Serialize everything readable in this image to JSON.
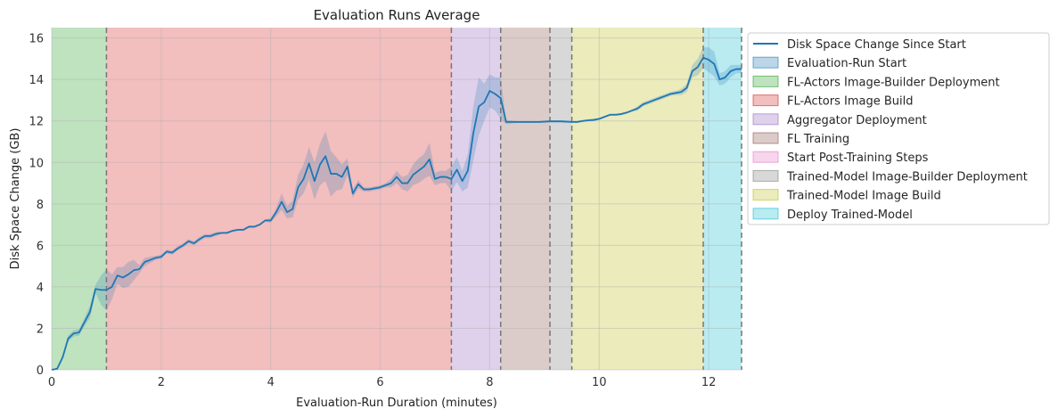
{
  "chart_data": {
    "type": "line",
    "title": "Evaluation Runs Average",
    "xlabel": "Evaluation-Run Duration (minutes)",
    "ylabel": "Disk Space Change (GB)",
    "xlim": [
      0,
      12.6
    ],
    "ylim": [
      0,
      16.5
    ],
    "xticks": [
      0,
      2,
      4,
      6,
      8,
      10,
      12
    ],
    "yticks": [
      0,
      2,
      4,
      6,
      8,
      10,
      12,
      14,
      16
    ],
    "grid": true,
    "legend_position": "outside-right",
    "line_color": "#1f77b4",
    "series": [
      {
        "name": "Disk Space Change Since Start",
        "x": [
          0,
          0.1,
          0.2,
          0.3,
          0.4,
          0.5,
          0.6,
          0.7,
          0.8,
          0.9,
          1.0,
          1.1,
          1.2,
          1.3,
          1.4,
          1.5,
          1.6,
          1.7,
          1.8,
          1.9,
          2.0,
          2.1,
          2.2,
          2.3,
          2.4,
          2.5,
          2.6,
          2.7,
          2.8,
          2.9,
          3.0,
          3.1,
          3.2,
          3.3,
          3.4,
          3.5,
          3.6,
          3.7,
          3.8,
          3.9,
          4.0,
          4.1,
          4.2,
          4.3,
          4.4,
          4.5,
          4.6,
          4.7,
          4.8,
          4.9,
          5.0,
          5.1,
          5.2,
          5.3,
          5.4,
          5.5,
          5.6,
          5.7,
          5.8,
          5.9,
          6.0,
          6.1,
          6.2,
          6.3,
          6.4,
          6.5,
          6.6,
          6.7,
          6.8,
          6.9,
          7.0,
          7.1,
          7.2,
          7.3,
          7.4,
          7.5,
          7.6,
          7.7,
          7.8,
          7.9,
          8.0,
          8.1,
          8.2,
          8.3,
          8.5,
          8.7,
          8.9,
          9.1,
          9.3,
          9.5,
          9.6,
          9.7,
          9.8,
          9.9,
          10.0,
          10.1,
          10.2,
          10.3,
          10.4,
          10.5,
          10.6,
          10.7,
          10.8,
          10.9,
          11.0,
          11.1,
          11.2,
          11.3,
          11.4,
          11.5,
          11.6,
          11.7,
          11.8,
          11.9,
          12.0,
          12.1,
          12.2,
          12.3,
          12.4,
          12.5,
          12.6
        ],
        "y": [
          0,
          0.05,
          0.6,
          1.5,
          1.75,
          1.8,
          2.3,
          2.8,
          3.9,
          3.85,
          3.85,
          4.0,
          4.55,
          4.45,
          4.6,
          4.8,
          4.85,
          5.2,
          5.3,
          5.4,
          5.45,
          5.7,
          5.65,
          5.85,
          6.0,
          6.2,
          6.1,
          6.3,
          6.45,
          6.45,
          6.55,
          6.6,
          6.6,
          6.7,
          6.75,
          6.75,
          6.9,
          6.9,
          7.0,
          7.2,
          7.2,
          7.6,
          8.1,
          7.6,
          7.75,
          8.8,
          9.2,
          9.95,
          9.1,
          9.9,
          10.3,
          9.45,
          9.45,
          9.3,
          9.8,
          8.5,
          8.95,
          8.7,
          8.7,
          8.75,
          8.8,
          8.9,
          9.0,
          9.3,
          9.0,
          9.0,
          9.4,
          9.6,
          9.8,
          10.15,
          9.2,
          9.3,
          9.3,
          9.2,
          9.65,
          9.1,
          9.6,
          11.4,
          12.7,
          12.9,
          13.45,
          13.3,
          13.1,
          11.95,
          11.95,
          11.95,
          11.95,
          11.98,
          11.98,
          11.95,
          11.95,
          12.0,
          12.03,
          12.05,
          12.1,
          12.2,
          12.3,
          12.3,
          12.33,
          12.4,
          12.5,
          12.6,
          12.8,
          12.9,
          13.0,
          13.1,
          13.2,
          13.3,
          13.35,
          13.4,
          13.6,
          14.4,
          14.6,
          15.05,
          14.95,
          14.75,
          14.0,
          14.1,
          14.4,
          14.5,
          14.5
        ],
        "ci_halfwidth": [
          0,
          0.05,
          0.1,
          0.15,
          0.15,
          0.15,
          0.2,
          0.3,
          0.2,
          0.7,
          1.0,
          0.6,
          0.4,
          0.5,
          0.6,
          0.5,
          0.2,
          0.2,
          0.15,
          0.1,
          0.1,
          0.1,
          0.1,
          0.1,
          0.1,
          0.1,
          0.1,
          0.1,
          0.1,
          0.1,
          0.1,
          0.05,
          0.05,
          0.05,
          0.05,
          0.05,
          0.05,
          0.05,
          0.05,
          0.05,
          0.1,
          0.2,
          0.4,
          0.3,
          0.4,
          0.6,
          0.7,
          0.8,
          0.9,
          1.0,
          1.2,
          1.1,
          0.8,
          0.6,
          0.4,
          0.2,
          0.2,
          0.1,
          0.1,
          0.1,
          0.1,
          0.1,
          0.2,
          0.3,
          0.3,
          0.4,
          0.5,
          0.6,
          0.6,
          0.8,
          0.3,
          0.3,
          0.3,
          0.6,
          0.6,
          0.5,
          0.8,
          1.3,
          1.4,
          0.9,
          0.8,
          0.8,
          1.0,
          0.1,
          0.05,
          0.05,
          0.05,
          0.05,
          0.05,
          0.05,
          0.05,
          0.05,
          0.05,
          0.05,
          0.05,
          0.05,
          0.05,
          0.05,
          0.05,
          0.05,
          0.05,
          0.1,
          0.1,
          0.1,
          0.1,
          0.1,
          0.1,
          0.1,
          0.1,
          0.15,
          0.2,
          0.3,
          0.4,
          0.5,
          0.6,
          0.6,
          0.3,
          0.3,
          0.3,
          0.2,
          0.2
        ]
      }
    ],
    "phases": [
      {
        "name": "Evaluation-Run Start",
        "start": 0,
        "end": 0,
        "color": "#1f77b4"
      },
      {
        "name": "FL-Actors Image-Builder Deployment",
        "start": 0,
        "end": 1.0,
        "color": "#2ca02c"
      },
      {
        "name": "FL-Actors Image Build",
        "start": 1.0,
        "end": 7.3,
        "color": "#d62728"
      },
      {
        "name": "Aggregator Deployment",
        "start": 7.3,
        "end": 8.2,
        "color": "#9467bd"
      },
      {
        "name": "FL Training",
        "start": 8.2,
        "end": 9.1,
        "color": "#8c564b"
      },
      {
        "name": "Start Post-Training Steps",
        "start": 9.1,
        "end": 9.1,
        "color": "#e377c2"
      },
      {
        "name": "Trained-Model Image-Builder Deployment",
        "start": 9.1,
        "end": 9.5,
        "color": "#7f7f7f"
      },
      {
        "name": "Trained-Model Image Build",
        "start": 9.5,
        "end": 11.9,
        "color": "#bcbd22"
      },
      {
        "name": "Deploy Trained-Model",
        "start": 11.9,
        "end": 12.6,
        "color": "#17becf"
      }
    ],
    "phase_boundaries": [
      1.0,
      7.3,
      8.2,
      9.1,
      9.5,
      11.9,
      12.6
    ]
  }
}
